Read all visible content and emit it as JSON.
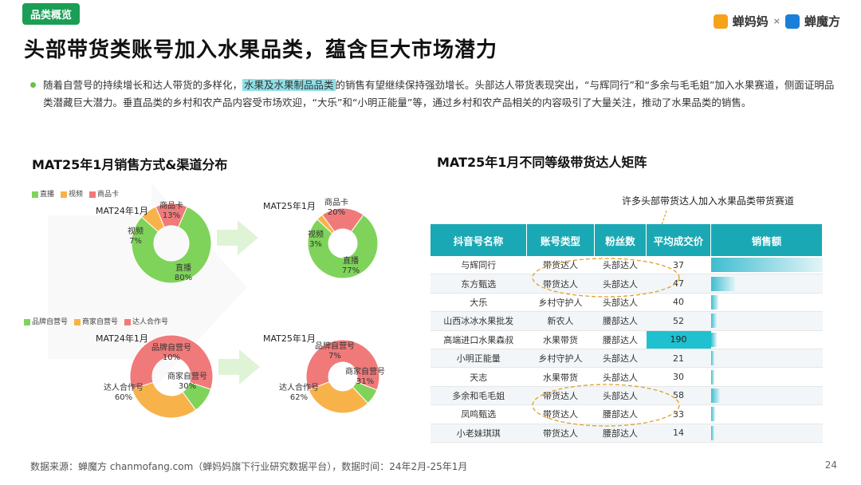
{
  "tag": "品类概览",
  "brand": {
    "left": "蝉妈妈",
    "x": "×",
    "right": "蝉魔方"
  },
  "title": "头部带货类账号加入水果品类，蕴含巨大市场潜力",
  "paragraph": {
    "part1": "随着自营号的持续增长和达人带货的多样化，",
    "highlight": "水果及水果制品品类",
    "part2": "的销售有望继续保持强劲增长。头部达人带货表现突出，“与辉同行”和“多余与毛毛姐”加入水果赛道，侧面证明品类潜藏巨大潜力。垂直品类的乡村和农产品内容受市场欢迎，“大乐”和“小明正能量”等，通过乡村和农产品相关的内容吸引了大量关注，推动了水果品类的销售。"
  },
  "left_section_title": "MAT25年1月销售方式&渠道分布",
  "right_section_title": "MAT25年1月不同等级带货达人矩阵",
  "legend1": [
    {
      "label": "直播",
      "color": "#7fd35a"
    },
    {
      "label": "视频",
      "color": "#f7b24a"
    },
    {
      "label": "商品卡",
      "color": "#f07a7a"
    }
  ],
  "legend2": [
    {
      "label": "品牌自营号",
      "color": "#7fd35a"
    },
    {
      "label": "商家自营号",
      "color": "#f7b24a"
    },
    {
      "label": "达人合作号",
      "color": "#f07a7a"
    }
  ],
  "annotation": "许多头部带货达人加入水果品类带货赛道",
  "chart_data": [
    {
      "type": "pie",
      "title": "MAT24年1月",
      "categories": [
        "直播",
        "视频",
        "商品卡"
      ],
      "values": [
        80,
        7,
        13
      ],
      "colors": [
        "#7fd35a",
        "#f7b24a",
        "#f07a7a"
      ],
      "labels": {
        "直播": "直播\n80%",
        "视频": "视频\n7%",
        "商品卡": "商品卡\n13%"
      }
    },
    {
      "type": "pie",
      "title": "MAT25年1月",
      "categories": [
        "直播",
        "视频",
        "商品卡"
      ],
      "values": [
        77,
        3,
        20
      ],
      "colors": [
        "#7fd35a",
        "#f7b24a",
        "#f07a7a"
      ],
      "labels": {
        "直播": "直播\n77%",
        "视频": "视频\n3%",
        "商品卡": "商品卡\n20%"
      }
    },
    {
      "type": "pie",
      "title": "MAT24年1月",
      "categories": [
        "品牌自营号",
        "商家自营号",
        "达人合作号"
      ],
      "values": [
        10,
        30,
        60
      ],
      "colors": [
        "#7fd35a",
        "#f7b24a",
        "#f07a7a"
      ],
      "labels": {
        "品牌自营号": "品牌自营号\n10%",
        "商家自营号": "商家自营号\n30%",
        "达人合作号": "达人合作号\n60%"
      }
    },
    {
      "type": "pie",
      "title": "MAT25年1月",
      "categories": [
        "品牌自营号",
        "商家自营号",
        "达人合作号"
      ],
      "values": [
        7,
        31,
        62
      ],
      "colors": [
        "#7fd35a",
        "#f7b24a",
        "#f07a7a"
      ],
      "labels": {
        "品牌自营号": "品牌自营号\n7%",
        "商家自营号": "商家自营号\n31%",
        "达人合作号": "达人合作号\n62%"
      }
    },
    {
      "type": "table",
      "title": "",
      "columns": [
        "抖音号名称",
        "账号类型",
        "粉丝数",
        "平均成交价",
        "销售额"
      ],
      "rows": [
        [
          "与辉同行",
          "带货达人",
          "头部达人",
          "37"
        ],
        [
          "东方甄选",
          "带货达人",
          "头部达人",
          "47"
        ],
        [
          "大乐",
          "乡村守护人",
          "头部达人",
          "40"
        ],
        [
          "山西冰冰水果批发",
          "新农人",
          "腰部达人",
          "52"
        ],
        [
          "高端进口水果森叔",
          "水果带货",
          "腰部达人",
          "190"
        ],
        [
          "小明正能量",
          "乡村守护人",
          "头部达人",
          "21"
        ],
        [
          "天志",
          "水果带货",
          "头部达人",
          "30"
        ],
        [
          "多余和毛毛姐",
          "带货达人",
          "头部达人",
          "58"
        ],
        [
          "凤鸣甄选",
          "带货达人",
          "腰部达人",
          "33"
        ],
        [
          "小老妹琪琪",
          "带货达人",
          "腰部达人",
          "14"
        ]
      ],
      "sales_relative": [
        1.0,
        0.22,
        0.07,
        0.05,
        0.05,
        0.03,
        0.03,
        0.08,
        0.04,
        0.03
      ],
      "highlight_row": 4
    }
  ],
  "footer": "数据来源：蝉魔方 chanmofang.com（蝉妈妈旗下行业研究数据平台），数据时间：24年2月-25年1月",
  "page_number": "24"
}
